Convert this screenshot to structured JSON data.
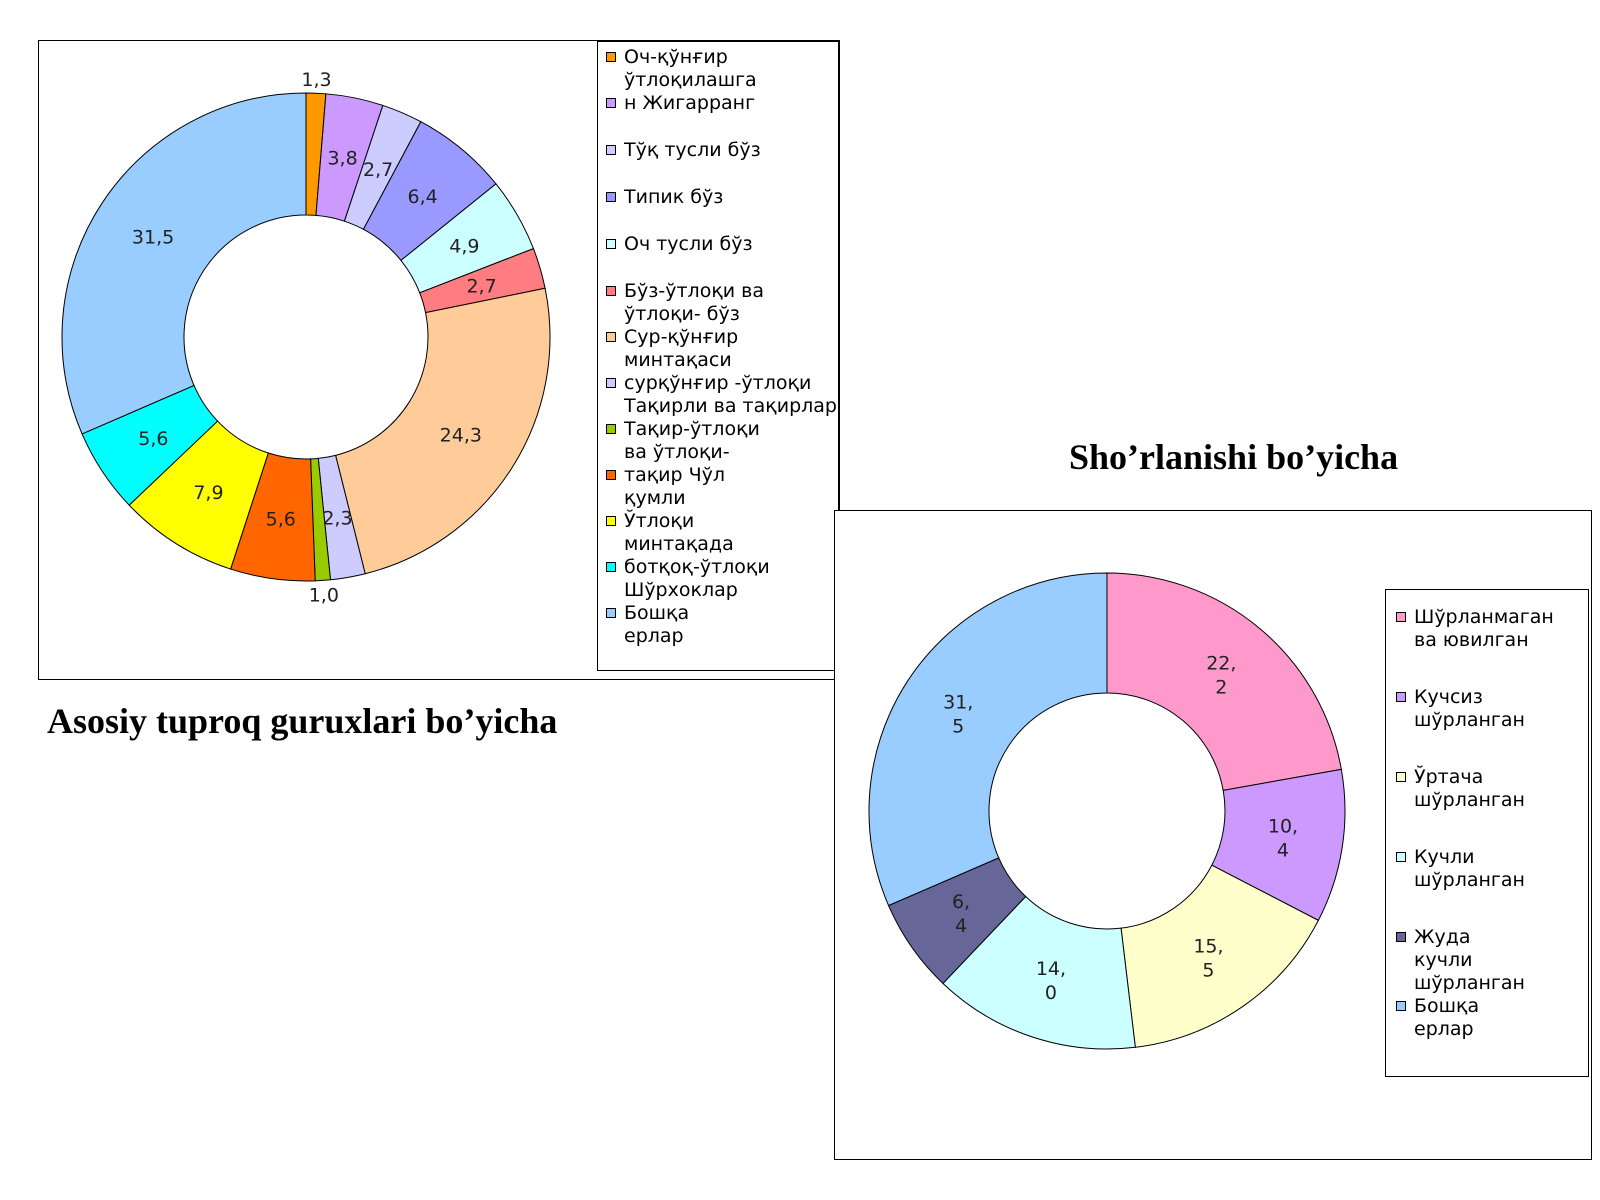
{
  "captions": {
    "left": "Asosiy tuproq guruxlari bo’yicha",
    "right": "Sho’rlanishi bo’yicha"
  },
  "chart_data": [
    {
      "type": "pie",
      "donut": true,
      "title": "",
      "categories": [
        "Оч-қўнғир ўтлоқилашга",
        "н Жигарранг",
        "Тўқ тусли бўз",
        "Типик бўз",
        "Оч тусли бўз",
        "Бўз-ўтлоқи ва ўтлоқи- бўз",
        "Сур-қўнғир минтақаси",
        "сурқўнғир -ўтлоқи Тақирли ва тақирлар",
        "Тақир-ўтлоқи ва ўтлоқи-",
        "тақир Чўл қумли",
        "Ўтлоқи минтақада",
        "ботқоқ-ўтлоқи Шўрхоклар",
        "Бошқа ерлар"
      ],
      "values": [
        1.3,
        3.8,
        2.7,
        6.4,
        4.9,
        2.7,
        24.3,
        2.3,
        1.0,
        5.6,
        7.9,
        5.6,
        31.5
      ],
      "value_labels": [
        "1,3",
        "3,8",
        "2,7",
        "6,4",
        "4,9",
        "2,7",
        "24,3",
        "2,3",
        "1,0",
        "5,6",
        "7,9",
        "5,6",
        "31,5"
      ],
      "colors": [
        "#ff9900",
        "#cc99ff",
        "#ccccff",
        "#9999ff",
        "#ccffff",
        "#ff7c80",
        "#ffcc99",
        "#ccccff",
        "#99cc00",
        "#ff6600",
        "#ffff00",
        "#00ffff",
        "#99ccff"
      ],
      "legend": {
        "position": "right",
        "entries": [
          {
            "text": "Оч-қўнғир\nўтлоқилашга",
            "color": "#ff9900"
          },
          {
            "text": "н  Жигарранг",
            "color": "#cc99ff"
          },
          {
            "text": "Тўқ тусли бўз",
            "color": "#ccccff"
          },
          {
            "text": "Типик бўз",
            "color": "#9999ff"
          },
          {
            "text": "Оч тусли бўз",
            "color": "#ccffff"
          },
          {
            "text": "Бўз-ўтлоқи ва\nўтлоқи-  бўз",
            "color": "#ff7c80"
          },
          {
            "text": "Сур-қўнғир\nминтақаси",
            "color": "#ffcc99"
          },
          {
            "text": "сурқўнғир -ўтлоқи\nТақирли ва тақирлар",
            "color": "#ccccff"
          },
          {
            "text": "Тақир-ўтлоқи\nва  ўтлоқи-",
            "color": "#99cc00"
          },
          {
            "text": "тақир  Чўл\nқумли",
            "color": "#ff6600"
          },
          {
            "text": "Ўтлоқи\nминтақада",
            "color": "#ffff00"
          },
          {
            "text": "ботқоқ-ўтлоқи\nШўрхоклар",
            "color": "#00ffff"
          },
          {
            "text": "Бошқа\nерлар",
            "color": "#99ccff"
          }
        ]
      }
    },
    {
      "type": "pie",
      "donut": true,
      "title": "",
      "categories": [
        "Шўрланмаган ва ювилган",
        "Кучсиз шўрланган",
        "Ўртача шўрланган",
        "Кучли шўрланган",
        "Жуда кучли шўрланган",
        "Бошқа ерлар"
      ],
      "values": [
        22.2,
        10.4,
        15.5,
        14.0,
        6.4,
        31.5
      ],
      "value_labels": [
        "22,\n2",
        "10,\n4",
        "15,\n5",
        "14,\n0",
        "6,\n4",
        "31,\n5"
      ],
      "colors": [
        "#ff99cc",
        "#cc99ff",
        "#ffffcc",
        "#ccffff",
        "#666699",
        "#99ccff"
      ],
      "legend": {
        "position": "right",
        "entries": [
          {
            "text": "Шўрланмаган\nва  ювилган",
            "color": "#ff99cc"
          },
          {
            "text": "Кучсиз\nшўрланган",
            "color": "#cc99ff"
          },
          {
            "text": "Ўртача\nшўрланган",
            "color": "#ffffcc"
          },
          {
            "text": "Кучли\nшўрланган",
            "color": "#ccffff"
          },
          {
            "text": "Жуда\nкучли\nшўрланган",
            "color": "#666699"
          },
          {
            "text": "Бошқа\nерлар",
            "color": "#99ccff"
          }
        ]
      }
    }
  ]
}
